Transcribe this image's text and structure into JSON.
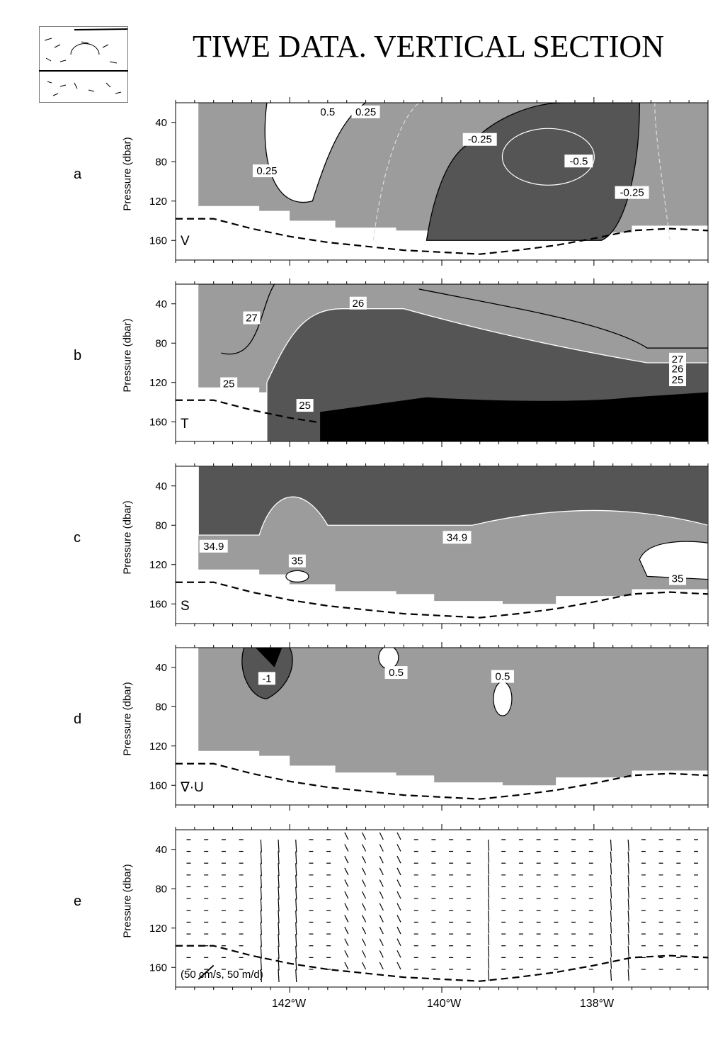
{
  "title": "TIWE DATA. VERTICAL SECTION",
  "chart_data": {
    "type": "heatmap",
    "title": "TIWE DATA. VERTICAL SECTION",
    "xlabel": "",
    "ylabel": "Pressure (dbar)",
    "x_ticks": [
      "142°W",
      "140°W",
      "138°W"
    ],
    "x_tick_values": [
      -142,
      -140,
      -138
    ],
    "xlim": [
      -143.5,
      -136.5
    ],
    "ylim": [
      180,
      20
    ],
    "y_ticks": [
      40,
      80,
      120,
      160
    ],
    "reference_arrow_label": "(50 cm/s, 50 m/d)",
    "panels": [
      {
        "letter": "a",
        "variable": "V",
        "contour_labels": [
          "0.5",
          "0.25",
          "0.25",
          "-0.25",
          "-0.5",
          "-0.25"
        ]
      },
      {
        "letter": "b",
        "variable": "T",
        "contour_labels": [
          "27",
          "26",
          "25",
          "25",
          "27",
          "26",
          "25"
        ]
      },
      {
        "letter": "c",
        "variable": "S",
        "contour_labels": [
          "34.9",
          "34.9",
          "35",
          "35"
        ]
      },
      {
        "letter": "d",
        "variable": "∇·U",
        "contour_labels": [
          "-1",
          "0.5",
          "0.5"
        ]
      },
      {
        "letter": "e",
        "variable": "",
        "contour_labels": []
      }
    ],
    "bottom_boundary_pressure": [
      {
        "lon": -143.5,
        "p": 138
      },
      {
        "lon": -143.0,
        "p": 138
      },
      {
        "lon": -142.5,
        "p": 148
      },
      {
        "lon": -142.0,
        "p": 156
      },
      {
        "lon": -141.5,
        "p": 162
      },
      {
        "lon": -141.0,
        "p": 166
      },
      {
        "lon": -140.5,
        "p": 170
      },
      {
        "lon": -140.0,
        "p": 172
      },
      {
        "lon": -139.5,
        "p": 174
      },
      {
        "lon": -139.0,
        "p": 170
      },
      {
        "lon": -138.5,
        "p": 165
      },
      {
        "lon": -138.0,
        "p": 158
      },
      {
        "lon": -137.5,
        "p": 150
      },
      {
        "lon": -137.0,
        "p": 148
      },
      {
        "lon": -136.5,
        "p": 150
      }
    ]
  },
  "colors": {
    "light": "#9c9c9c",
    "dark": "#555555",
    "black": "#000000",
    "white": "#ffffff"
  }
}
